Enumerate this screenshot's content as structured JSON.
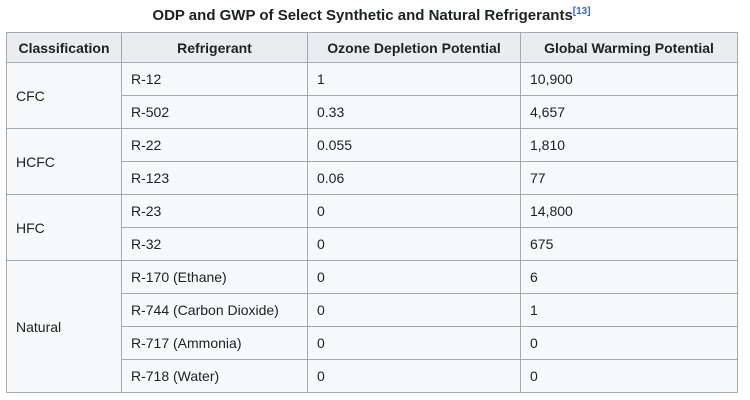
{
  "chart_data": {
    "type": "table",
    "title": "ODP and GWP of Select Synthetic and Natural Refrigerants",
    "title_ref": "[13]",
    "columns": [
      "Classification",
      "Refrigerant",
      "Ozone Depletion Potential",
      "Global Warming Potential"
    ],
    "groups": [
      {
        "classification": "CFC",
        "rows": [
          {
            "refrigerant": "R-12",
            "odp": "1",
            "gwp": "10,900"
          },
          {
            "refrigerant": "R-502",
            "odp": "0.33",
            "gwp": "4,657"
          }
        ]
      },
      {
        "classification": "HCFC",
        "rows": [
          {
            "refrigerant": "R-22",
            "odp": "0.055",
            "gwp": "1,810"
          },
          {
            "refrigerant": "R-123",
            "odp": "0.06",
            "gwp": "77"
          }
        ]
      },
      {
        "classification": "HFC",
        "rows": [
          {
            "refrigerant": "R-23",
            "odp": "0",
            "gwp": "14,800"
          },
          {
            "refrigerant": "R-32",
            "odp": "0",
            "gwp": "675"
          }
        ]
      },
      {
        "classification": "Natural",
        "rows": [
          {
            "refrigerant": "R-170 (Ethane)",
            "odp": "0",
            "gwp": "6"
          },
          {
            "refrigerant": "R-744 (Carbon Dioxide)",
            "odp": "0",
            "gwp": "1"
          },
          {
            "refrigerant": "R-717 (Ammonia)",
            "odp": "0",
            "gwp": "0"
          },
          {
            "refrigerant": "R-718 (Water)",
            "odp": "0",
            "gwp": "0"
          }
        ]
      }
    ]
  },
  "colors": {
    "header_bg": "#eaecf0",
    "cell_bg": "#f8f9fa",
    "border": "#a2a9b1",
    "text": "#202122",
    "link": "#3366cc"
  }
}
